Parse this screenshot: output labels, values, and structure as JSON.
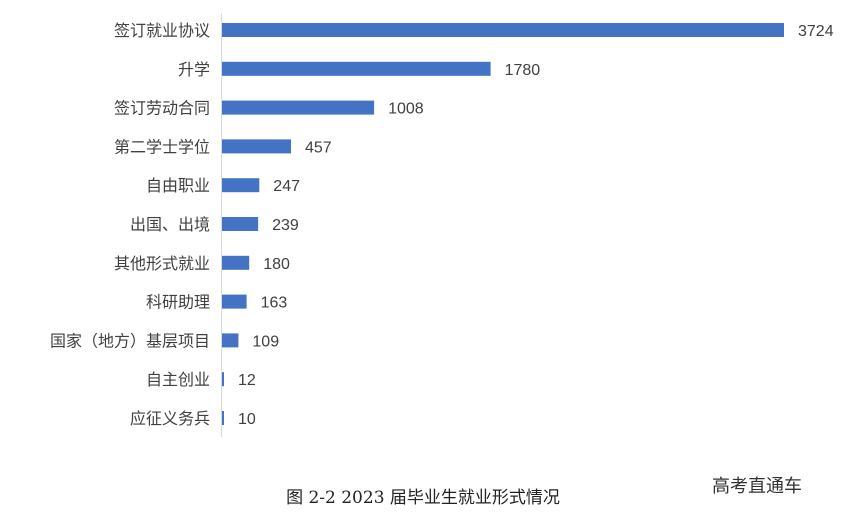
{
  "chart_data": {
    "type": "bar",
    "orientation": "horizontal",
    "categories": [
      "签订就业协议",
      "升学",
      "签订劳动合同",
      "第二学士学位",
      "自由职业",
      "出国、出境",
      "其他形式就业",
      "科研助理",
      "国家（地方）基层项目",
      "自主创业",
      "应征义务兵"
    ],
    "values": [
      3724,
      1780,
      1008,
      457,
      247,
      239,
      180,
      163,
      109,
      12,
      10
    ],
    "bar_color": "#4472C4",
    "data_labels": true,
    "grid": false
  },
  "caption": "图 2-2 2023 届毕业生就业形式情况",
  "watermark": "高考直通车"
}
